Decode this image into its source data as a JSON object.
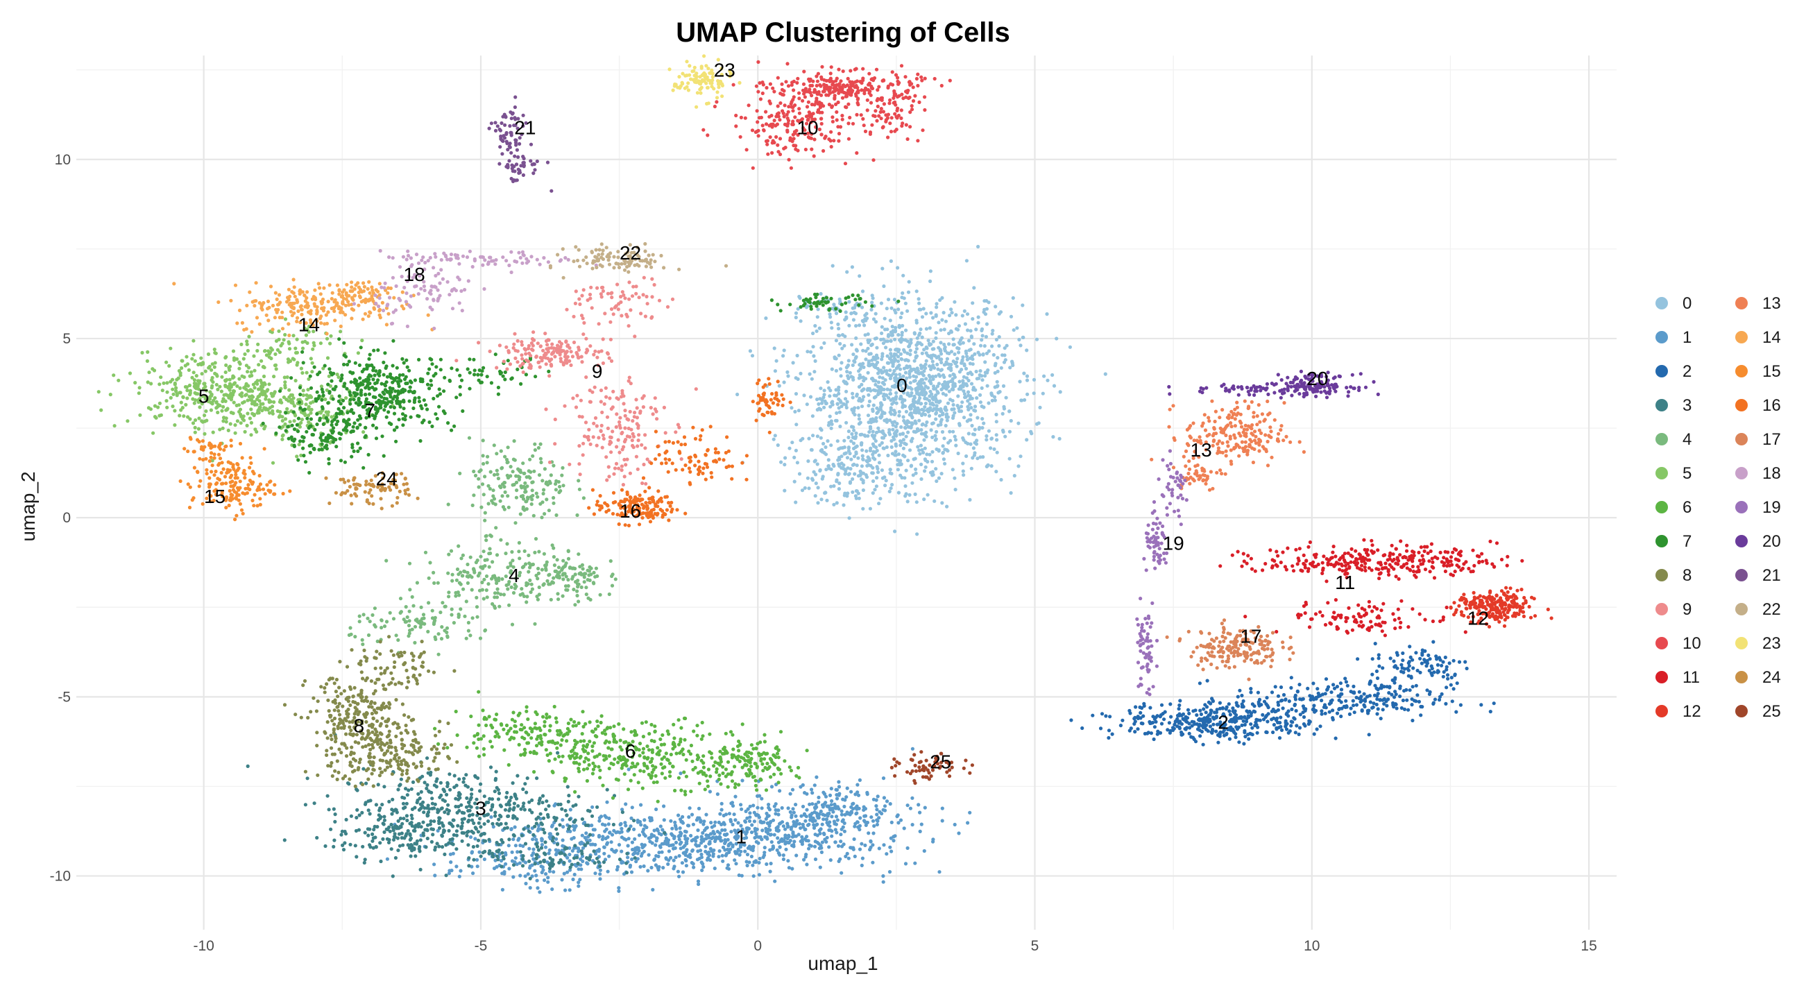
{
  "chart_data": {
    "type": "scatter",
    "title": "UMAP Clustering of Cells",
    "xlabel": "umap_1",
    "ylabel": "umap_2",
    "xlim": [
      -12.3,
      15.5
    ],
    "ylim": [
      -11.5,
      12.9
    ],
    "xticks": [
      -10,
      -5,
      0,
      5,
      10,
      15
    ],
    "yticks": [
      -10,
      -5,
      0,
      5,
      10
    ],
    "xtick_labels": [
      "-10",
      "-5",
      "0",
      "5",
      "10",
      "15"
    ],
    "ytick_labels": [
      "-10",
      "-5",
      "0",
      "5",
      "10"
    ],
    "grid": true,
    "legend_position": "right",
    "clusters": [
      {
        "id": "0",
        "color": "#94C3DE",
        "label_pos": [
          2.6,
          3.7
        ],
        "regions": [
          [
            2.8,
            3.6,
            1.3,
            1.6,
            1400
          ],
          [
            1.8,
            1.4,
            0.9,
            0.7,
            200
          ],
          [
            1.5,
            5.9,
            0.6,
            0.25,
            40
          ]
        ]
      },
      {
        "id": "1",
        "color": "#5B9BCB",
        "label_pos": [
          -0.3,
          -8.9
        ],
        "regions": [
          [
            -2.0,
            -9.1,
            2.0,
            0.6,
            500
          ],
          [
            0.5,
            -8.7,
            1.6,
            0.7,
            450
          ],
          [
            -4.2,
            -9.6,
            1.0,
            0.5,
            120
          ],
          [
            1.5,
            -8.1,
            0.5,
            0.5,
            100
          ]
        ]
      },
      {
        "id": "2",
        "color": "#2369AE",
        "label_pos": [
          8.4,
          -5.7
        ],
        "regions": [
          [
            8.3,
            -5.7,
            1.2,
            0.35,
            350
          ],
          [
            10.5,
            -5.1,
            1.3,
            0.4,
            250
          ],
          [
            12.0,
            -4.1,
            0.6,
            0.4,
            90
          ]
        ]
      },
      {
        "id": "3",
        "color": "#3D8187",
        "label_pos": [
          -5.0,
          -8.1
        ],
        "regions": [
          [
            -5.4,
            -8.2,
            1.5,
            0.8,
            450
          ],
          [
            -6.6,
            -8.9,
            0.8,
            0.4,
            100
          ],
          [
            -3.8,
            -9.4,
            0.8,
            0.4,
            80
          ]
        ]
      },
      {
        "id": "4",
        "color": "#7ABA7E",
        "label_pos": [
          -4.4,
          -1.6
        ],
        "regions": [
          [
            -4.5,
            -1.6,
            1.0,
            0.6,
            220
          ],
          [
            -4.3,
            0.9,
            0.6,
            0.8,
            170
          ],
          [
            -6.0,
            -3.0,
            0.9,
            0.4,
            100
          ],
          [
            -3.3,
            -1.7,
            0.4,
            0.4,
            60
          ]
        ]
      },
      {
        "id": "5",
        "color": "#86C766",
        "label_pos": [
          -10.0,
          3.4
        ],
        "regions": [
          [
            -9.8,
            3.6,
            1.0,
            0.7,
            350
          ],
          [
            -8.5,
            3.0,
            0.8,
            0.7,
            220
          ],
          [
            -8.3,
            4.8,
            0.6,
            0.4,
            60
          ]
        ]
      },
      {
        "id": "6",
        "color": "#5CB543",
        "label_pos": [
          -2.3,
          -6.5
        ],
        "regions": [
          [
            -2.0,
            -6.6,
            1.3,
            0.6,
            320
          ],
          [
            -4.2,
            -6.0,
            0.9,
            0.5,
            150
          ],
          [
            -0.2,
            -6.9,
            0.6,
            0.4,
            120
          ]
        ]
      },
      {
        "id": "7",
        "color": "#2E932F",
        "label_pos": [
          -7.0,
          3.0
        ],
        "regions": [
          [
            -6.8,
            3.5,
            0.9,
            0.7,
            380
          ],
          [
            -7.8,
            2.3,
            0.5,
            0.5,
            120
          ],
          [
            -4.7,
            4.0,
            0.6,
            0.3,
            40
          ],
          [
            1.2,
            6.0,
            0.5,
            0.15,
            50
          ]
        ]
      },
      {
        "id": "8",
        "color": "#848A4C",
        "label_pos": [
          -7.2,
          -5.8
        ],
        "regions": [
          [
            -7.2,
            -5.8,
            0.6,
            1.0,
            300
          ],
          [
            -6.4,
            -6.6,
            0.6,
            0.5,
            120
          ],
          [
            -6.4,
            -4.2,
            0.5,
            0.4,
            60
          ]
        ]
      },
      {
        "id": "9",
        "color": "#EE8B8C",
        "label_pos": [
          -2.9,
          4.1
        ],
        "regions": [
          [
            -3.8,
            4.6,
            0.7,
            0.3,
            150
          ],
          [
            -2.6,
            2.6,
            0.6,
            1.1,
            160
          ],
          [
            -2.5,
            6.0,
            0.6,
            0.5,
            70
          ]
        ]
      },
      {
        "id": "10",
        "color": "#E7494F",
        "label_pos": [
          0.9,
          10.9
        ],
        "regions": [
          [
            1.6,
            12.0,
            0.9,
            0.3,
            250
          ],
          [
            0.7,
            11.0,
            0.8,
            0.6,
            200
          ],
          [
            2.3,
            11.2,
            0.5,
            0.4,
            60
          ]
        ]
      },
      {
        "id": "11",
        "color": "#D91E27",
        "label_pos": [
          10.6,
          -1.8
        ],
        "regions": [
          [
            11.2,
            -1.2,
            1.4,
            0.3,
            300
          ],
          [
            11.0,
            -2.8,
            1.0,
            0.3,
            100
          ]
        ]
      },
      {
        "id": "12",
        "color": "#E43A28",
        "label_pos": [
          13.0,
          -2.8
        ],
        "regions": [
          [
            13.3,
            -2.5,
            0.45,
            0.3,
            220
          ]
        ]
      },
      {
        "id": "13",
        "color": "#EF8054",
        "label_pos": [
          8.0,
          1.9
        ],
        "regions": [
          [
            8.6,
            2.3,
            0.6,
            0.6,
            200
          ],
          [
            7.9,
            1.2,
            0.3,
            0.3,
            40
          ]
        ]
      },
      {
        "id": "14",
        "color": "#F7A852",
        "label_pos": [
          -8.1,
          5.4
        ],
        "regions": [
          [
            -8.0,
            5.9,
            1.0,
            0.4,
            200
          ],
          [
            -7.2,
            6.3,
            0.4,
            0.2,
            60
          ]
        ]
      },
      {
        "id": "15",
        "color": "#F68C2E",
        "label_pos": [
          -9.8,
          0.6
        ],
        "regions": [
          [
            -9.5,
            0.9,
            0.5,
            0.5,
            150
          ],
          [
            -9.9,
            1.9,
            0.3,
            0.3,
            40
          ]
        ]
      },
      {
        "id": "16",
        "color": "#F27222",
        "label_pos": [
          -2.3,
          0.2
        ],
        "regions": [
          [
            -2.2,
            0.3,
            0.5,
            0.3,
            150
          ],
          [
            -1.1,
            1.7,
            0.5,
            0.5,
            80
          ],
          [
            0.2,
            3.3,
            0.2,
            0.4,
            50
          ]
        ]
      },
      {
        "id": "17",
        "color": "#DB8459",
        "label_pos": [
          8.9,
          -3.3
        ],
        "regions": [
          [
            8.6,
            -3.6,
            0.55,
            0.4,
            170
          ]
        ]
      },
      {
        "id": "18",
        "color": "#C8A0C9",
        "label_pos": [
          -6.2,
          6.8
        ],
        "regions": [
          [
            -5.0,
            7.2,
            1.2,
            0.15,
            80
          ],
          [
            -6.0,
            6.3,
            0.6,
            0.5,
            80
          ]
        ]
      },
      {
        "id": "19",
        "color": "#9A71BA",
        "label_pos": [
          7.5,
          -0.7
        ],
        "regions": [
          [
            7.2,
            -0.8,
            0.15,
            0.5,
            60
          ],
          [
            7.5,
            0.7,
            0.2,
            0.6,
            40
          ],
          [
            7.0,
            -3.7,
            0.12,
            0.9,
            60
          ]
        ]
      },
      {
        "id": "20",
        "color": "#6A3B9B",
        "label_pos": [
          10.1,
          3.9
        ],
        "regions": [
          [
            10.0,
            3.7,
            0.5,
            0.2,
            150
          ],
          [
            8.7,
            3.6,
            0.7,
            0.1,
            40
          ]
        ]
      },
      {
        "id": "21",
        "color": "#7A5190",
        "label_pos": [
          -4.2,
          10.9
        ],
        "regions": [
          [
            -4.5,
            10.7,
            0.2,
            0.5,
            60
          ],
          [
            -4.3,
            9.8,
            0.3,
            0.3,
            40
          ]
        ]
      },
      {
        "id": "22",
        "color": "#C4AF89",
        "label_pos": [
          -2.3,
          7.4
        ],
        "regions": [
          [
            -2.5,
            7.2,
            0.6,
            0.25,
            100
          ]
        ]
      },
      {
        "id": "23",
        "color": "#F2E275",
        "label_pos": [
          -0.6,
          12.5
        ],
        "regions": [
          [
            -1.0,
            12.2,
            0.35,
            0.35,
            100
          ]
        ]
      },
      {
        "id": "24",
        "color": "#C99146",
        "label_pos": [
          -6.7,
          1.1
        ],
        "regions": [
          [
            -7.0,
            0.8,
            0.5,
            0.3,
            80
          ]
        ]
      },
      {
        "id": "25",
        "color": "#A0462A",
        "label_pos": [
          3.3,
          -6.8
        ],
        "regions": [
          [
            3.1,
            -7.0,
            0.4,
            0.25,
            60
          ]
        ]
      }
    ]
  }
}
